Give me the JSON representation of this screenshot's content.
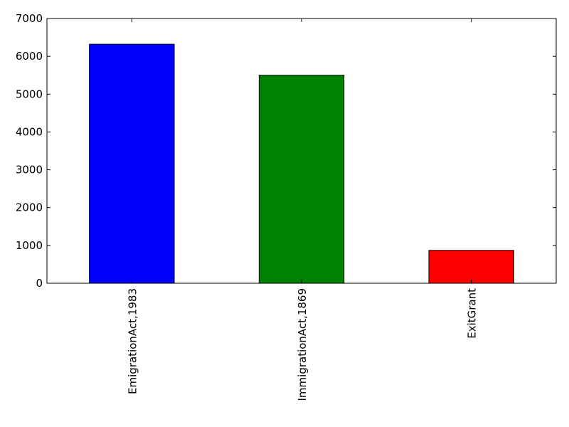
{
  "chart_data": {
    "type": "bar",
    "categories": [
      "EmigrationAct,1983",
      "ImmigrationAct,1869",
      "ExitGrant"
    ],
    "values": [
      6320,
      5500,
      870
    ],
    "colors": [
      "#0000ff",
      "#008000",
      "#ff0000"
    ],
    "ylim": [
      0,
      7000
    ],
    "yticks": [
      0,
      1000,
      2000,
      3000,
      4000,
      5000,
      6000,
      7000
    ],
    "grid": false
  }
}
